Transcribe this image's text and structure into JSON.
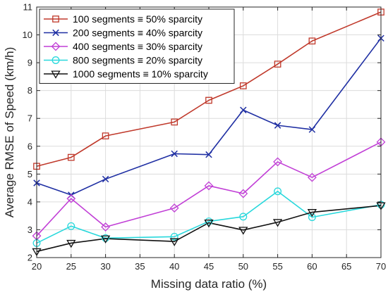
{
  "chart_data": {
    "type": "line",
    "xlabel": "Missing data ratio (%)",
    "ylabel": "Average RMSE of Speed (km/h)",
    "xlim": [
      20,
      70
    ],
    "ylim": [
      2,
      11
    ],
    "xticks": [
      20,
      25,
      30,
      35,
      40,
      45,
      50,
      55,
      60,
      65,
      70
    ],
    "yticks": [
      2,
      3,
      4,
      5,
      6,
      7,
      8,
      9,
      10,
      11
    ],
    "grid": true,
    "legend_position": "top-left",
    "x": [
      20,
      25,
      30,
      40,
      45,
      50,
      55,
      60,
      70
    ],
    "series": [
      {
        "name": "100 segments ≡ 50% sparcity",
        "color": "#c0392b",
        "marker": "square",
        "values": [
          5.28,
          5.6,
          6.37,
          6.87,
          7.65,
          8.17,
          8.95,
          9.78,
          10.82
        ]
      },
      {
        "name": "200 segments ≡ 40% sparcity",
        "color": "#1f2fa3",
        "marker": "x",
        "values": [
          4.68,
          4.25,
          4.82,
          5.73,
          5.7,
          7.3,
          6.75,
          6.6,
          9.88
        ]
      },
      {
        "name": "400 segments ≡ 30% sparcity",
        "color": "#c13fd6",
        "marker": "diamond",
        "values": [
          2.78,
          4.12,
          3.1,
          3.78,
          4.58,
          4.3,
          5.44,
          4.88,
          6.15
        ]
      },
      {
        "name": "800 segments ≡ 20% sparcity",
        "color": "#28d8dc",
        "marker": "circle",
        "values": [
          2.52,
          3.13,
          2.7,
          2.75,
          3.3,
          3.47,
          4.38,
          3.45,
          3.9
        ]
      },
      {
        "name": "1000 segments ≡ 10% sparcity",
        "color": "#111111",
        "marker": "triangle-down",
        "values": [
          2.22,
          2.52,
          2.68,
          2.58,
          3.25,
          2.99,
          3.27,
          3.63,
          3.87
        ]
      }
    ]
  }
}
